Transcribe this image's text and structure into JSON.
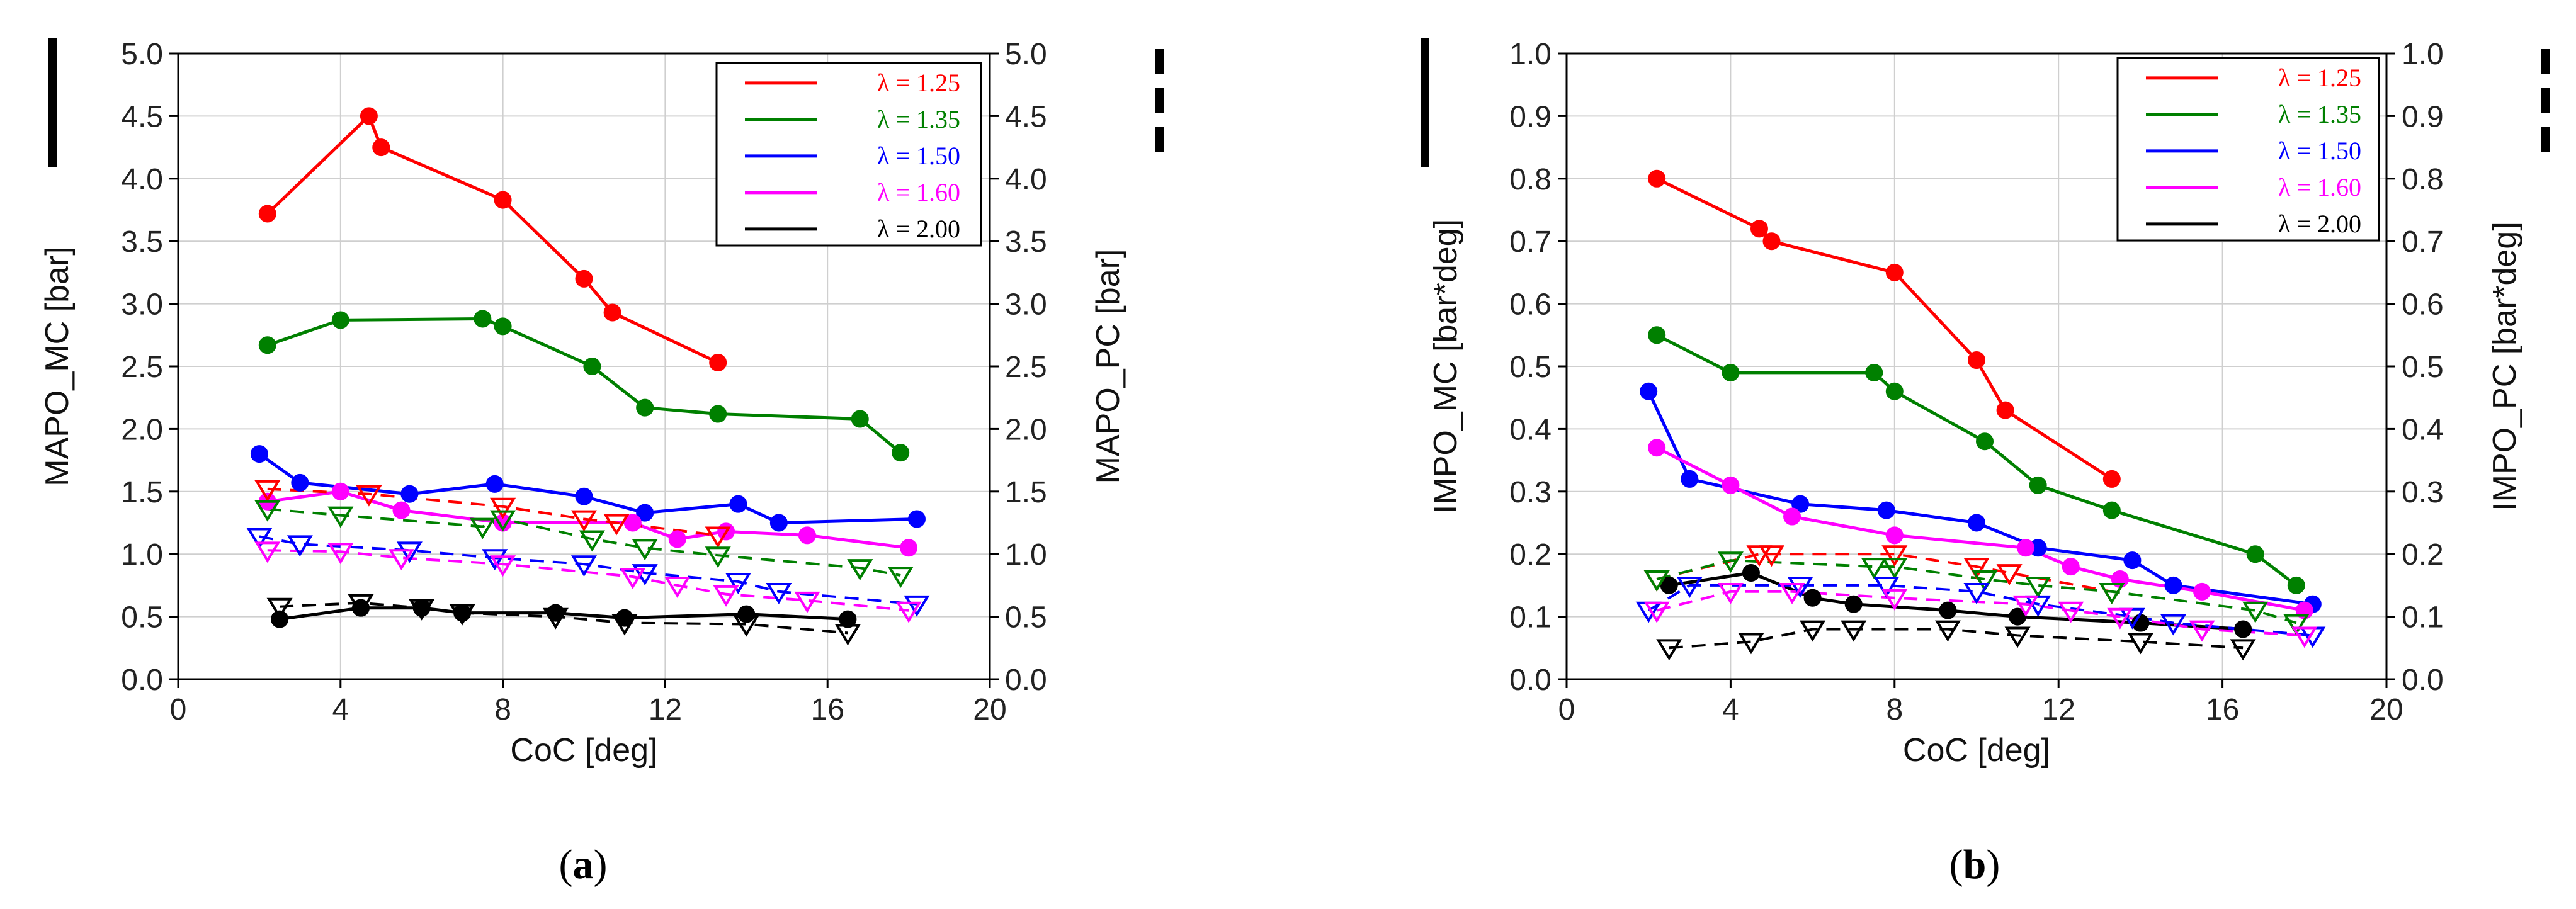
{
  "chart_data": [
    {
      "type": "line",
      "panel_label_text": "(a)",
      "xlabel": "CoC [deg]",
      "ylabel_left": "MAPO_MC [bar]",
      "ylabel_right": "MAPO_PC [bar]",
      "xlim": [
        0,
        20
      ],
      "ylim": [
        0,
        5
      ],
      "x_ticks": [
        "0",
        "4",
        "8",
        "12",
        "16",
        "20"
      ],
      "y_ticks": [
        "0.0",
        "0.5",
        "1.0",
        "1.5",
        "2.0",
        "2.5",
        "3.0",
        "3.5",
        "4.0",
        "4.5",
        "5.0"
      ],
      "legend_solid_indicator": "solid = MC",
      "legend_dashed_indicator": "dashed = PC",
      "legend": [
        {
          "label": "λ = 1.25",
          "color": "#ff0000"
        },
        {
          "label": "λ = 1.35",
          "color": "#008000"
        },
        {
          "label": "λ = 1.50",
          "color": "#0000ff"
        },
        {
          "label": "λ = 1.60",
          "color": "#ff00ff"
        },
        {
          "label": "λ = 2.00",
          "color": "#000000"
        }
      ],
      "series": [
        {
          "name": "λ = 1.25 MC",
          "color": "#ff0000",
          "style": "solid",
          "marker": "circle",
          "x": [
            2.2,
            4.7,
            5.0,
            8.0,
            10.0,
            10.7,
            13.3
          ],
          "y": [
            3.72,
            4.5,
            4.25,
            3.83,
            3.2,
            2.93,
            2.53
          ]
        },
        {
          "name": "λ = 1.35 MC",
          "color": "#008000",
          "style": "solid",
          "marker": "circle",
          "x": [
            2.2,
            4.0,
            7.5,
            8.0,
            10.2,
            11.5,
            13.3,
            16.8,
            17.8
          ],
          "y": [
            2.67,
            2.87,
            2.88,
            2.82,
            2.5,
            2.17,
            2.12,
            2.08,
            1.81
          ]
        },
        {
          "name": "λ = 1.50 MC",
          "color": "#0000ff",
          "style": "solid",
          "marker": "circle",
          "x": [
            2.0,
            3.0,
            5.7,
            7.8,
            10.0,
            11.5,
            13.8,
            14.8,
            18.2
          ],
          "y": [
            1.8,
            1.57,
            1.48,
            1.56,
            1.46,
            1.33,
            1.4,
            1.25,
            1.28
          ]
        },
        {
          "name": "λ = 1.60 MC",
          "color": "#ff00ff",
          "style": "solid",
          "marker": "circle",
          "x": [
            2.2,
            4.0,
            5.5,
            8.0,
            11.2,
            12.3,
            13.5,
            15.5,
            18.0
          ],
          "y": [
            1.42,
            1.5,
            1.35,
            1.25,
            1.25,
            1.12,
            1.18,
            1.15,
            1.05
          ]
        },
        {
          "name": "λ = 2.00 MC",
          "color": "#000000",
          "style": "solid",
          "marker": "circle",
          "x": [
            2.5,
            4.5,
            6.0,
            7.0,
            9.3,
            11.0,
            14.0,
            16.5
          ],
          "y": [
            0.48,
            0.57,
            0.57,
            0.53,
            0.53,
            0.49,
            0.52,
            0.48
          ]
        },
        {
          "name": "λ = 1.25 PC",
          "color": "#ff0000",
          "style": "dashed",
          "marker": "triangle",
          "x": [
            2.2,
            4.7,
            8.0,
            10.0,
            10.8,
            13.3
          ],
          "y": [
            1.52,
            1.48,
            1.38,
            1.28,
            1.25,
            1.15
          ]
        },
        {
          "name": "λ = 1.35 PC",
          "color": "#008000",
          "style": "dashed",
          "marker": "triangle",
          "x": [
            2.2,
            4.0,
            7.5,
            8.0,
            10.2,
            11.5,
            13.3,
            16.8,
            17.8
          ],
          "y": [
            1.36,
            1.31,
            1.22,
            1.28,
            1.12,
            1.05,
            0.99,
            0.89,
            0.83
          ]
        },
        {
          "name": "λ = 1.50 PC",
          "color": "#0000ff",
          "style": "dashed",
          "marker": "triangle",
          "x": [
            2.0,
            3.0,
            5.7,
            7.8,
            10.0,
            11.5,
            13.8,
            14.8,
            18.2
          ],
          "y": [
            1.14,
            1.08,
            1.03,
            0.97,
            0.92,
            0.85,
            0.78,
            0.7,
            0.6
          ]
        },
        {
          "name": "λ = 1.60 PC",
          "color": "#ff00ff",
          "style": "dashed",
          "marker": "triangle",
          "x": [
            2.2,
            4.0,
            5.5,
            8.0,
            11.2,
            12.3,
            13.5,
            15.5,
            18.0
          ],
          "y": [
            1.03,
            1.02,
            0.97,
            0.92,
            0.82,
            0.75,
            0.68,
            0.63,
            0.55
          ]
        },
        {
          "name": "λ = 2.00 PC",
          "color": "#000000",
          "style": "dashed",
          "marker": "triangle",
          "x": [
            2.5,
            4.5,
            6.0,
            7.0,
            9.3,
            11.0,
            14.0,
            16.5
          ],
          "y": [
            0.58,
            0.61,
            0.57,
            0.53,
            0.5,
            0.45,
            0.44,
            0.37
          ]
        }
      ]
    },
    {
      "type": "line",
      "panel_label_text": "(b)",
      "xlabel": "CoC [deg]",
      "ylabel_left": "IMPO_MC [bar*deg]",
      "ylabel_right": "IMPO_PC [bar*deg]",
      "xlim": [
        0,
        20
      ],
      "ylim": [
        0,
        1
      ],
      "x_ticks": [
        "0",
        "4",
        "8",
        "12",
        "16",
        "20"
      ],
      "y_ticks": [
        "0.0",
        "0.1",
        "0.2",
        "0.3",
        "0.4",
        "0.5",
        "0.6",
        "0.7",
        "0.8",
        "0.9",
        "1.0"
      ],
      "legend_solid_indicator": "solid = MC",
      "legend_dashed_indicator": "dashed = PC",
      "legend": [
        {
          "label": "λ = 1.25",
          "color": "#ff0000"
        },
        {
          "label": "λ = 1.35",
          "color": "#008000"
        },
        {
          "label": "λ = 1.50",
          "color": "#0000ff"
        },
        {
          "label": "λ = 1.60",
          "color": "#ff00ff"
        },
        {
          "label": "λ = 2.00",
          "color": "#000000"
        }
      ],
      "series": [
        {
          "name": "λ = 1.25 MC",
          "color": "#ff0000",
          "style": "solid",
          "marker": "circle",
          "x": [
            2.2,
            4.7,
            5.0,
            8.0,
            10.0,
            10.7,
            13.3
          ],
          "y": [
            0.8,
            0.72,
            0.7,
            0.65,
            0.51,
            0.43,
            0.32
          ]
        },
        {
          "name": "λ = 1.35 MC",
          "color": "#008000",
          "style": "solid",
          "marker": "circle",
          "x": [
            2.2,
            4.0,
            7.5,
            8.0,
            10.2,
            11.5,
            13.3,
            16.8,
            17.8
          ],
          "y": [
            0.55,
            0.49,
            0.49,
            0.46,
            0.38,
            0.31,
            0.27,
            0.2,
            0.15
          ]
        },
        {
          "name": "λ = 1.50 MC",
          "color": "#0000ff",
          "style": "solid",
          "marker": "circle",
          "x": [
            2.0,
            3.0,
            5.7,
            7.8,
            10.0,
            11.5,
            13.8,
            14.8,
            18.2
          ],
          "y": [
            0.46,
            0.32,
            0.28,
            0.27,
            0.25,
            0.21,
            0.19,
            0.15,
            0.12
          ]
        },
        {
          "name": "λ = 1.60 MC",
          "color": "#ff00ff",
          "style": "solid",
          "marker": "circle",
          "x": [
            2.2,
            4.0,
            5.5,
            8.0,
            11.2,
            12.3,
            13.5,
            15.5,
            18.0
          ],
          "y": [
            0.37,
            0.31,
            0.26,
            0.23,
            0.21,
            0.18,
            0.16,
            0.14,
            0.11
          ]
        },
        {
          "name": "λ = 2.00 MC",
          "color": "#000000",
          "style": "solid",
          "marker": "circle",
          "x": [
            2.5,
            4.5,
            6.0,
            7.0,
            9.3,
            11.0,
            14.0,
            16.5
          ],
          "y": [
            0.15,
            0.17,
            0.13,
            0.12,
            0.11,
            0.1,
            0.09,
            0.08
          ]
        },
        {
          "name": "λ = 1.25 PC",
          "color": "#ff0000",
          "style": "dashed",
          "marker": "triangle",
          "x": [
            2.2,
            4.7,
            5.0,
            8.0,
            10.0,
            10.8,
            13.3
          ],
          "y": [
            0.16,
            0.2,
            0.2,
            0.2,
            0.18,
            0.17,
            0.14
          ]
        },
        {
          "name": "λ = 1.35 PC",
          "color": "#008000",
          "style": "dashed",
          "marker": "triangle",
          "x": [
            2.2,
            4.0,
            7.5,
            8.0,
            10.2,
            11.5,
            13.3,
            16.8,
            17.8
          ],
          "y": [
            0.16,
            0.19,
            0.18,
            0.18,
            0.16,
            0.15,
            0.14,
            0.11,
            0.09
          ]
        },
        {
          "name": "λ = 1.50 PC",
          "color": "#0000ff",
          "style": "dashed",
          "marker": "triangle",
          "x": [
            2.0,
            3.0,
            5.7,
            7.8,
            10.0,
            11.5,
            13.8,
            14.8,
            18.2
          ],
          "y": [
            0.11,
            0.15,
            0.15,
            0.15,
            0.14,
            0.12,
            0.1,
            0.09,
            0.07
          ]
        },
        {
          "name": "λ = 1.60 PC",
          "color": "#ff00ff",
          "style": "dashed",
          "marker": "triangle",
          "x": [
            2.2,
            4.0,
            5.5,
            8.0,
            11.2,
            12.3,
            13.5,
            15.5,
            18.0
          ],
          "y": [
            0.11,
            0.14,
            0.14,
            0.13,
            0.12,
            0.11,
            0.1,
            0.08,
            0.07
          ]
        },
        {
          "name": "λ = 2.00 PC",
          "color": "#000000",
          "style": "dashed",
          "marker": "triangle",
          "x": [
            2.5,
            4.5,
            6.0,
            7.0,
            9.3,
            11.0,
            14.0,
            16.5
          ],
          "y": [
            0.05,
            0.06,
            0.08,
            0.08,
            0.08,
            0.07,
            0.06,
            0.05
          ]
        }
      ]
    }
  ]
}
